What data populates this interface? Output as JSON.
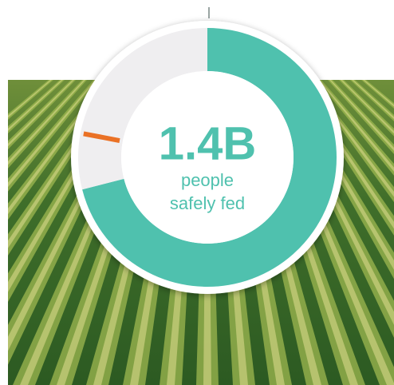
{
  "chart_data": {
    "type": "donut",
    "center_label": "1.4B",
    "center_sublabel": [
      "people",
      "safely fed"
    ],
    "values": [
      71,
      29
    ],
    "colors": [
      "#4fc1ae",
      "#efeef0"
    ],
    "marker": 78,
    "marker_color": "#ea7125"
  }
}
